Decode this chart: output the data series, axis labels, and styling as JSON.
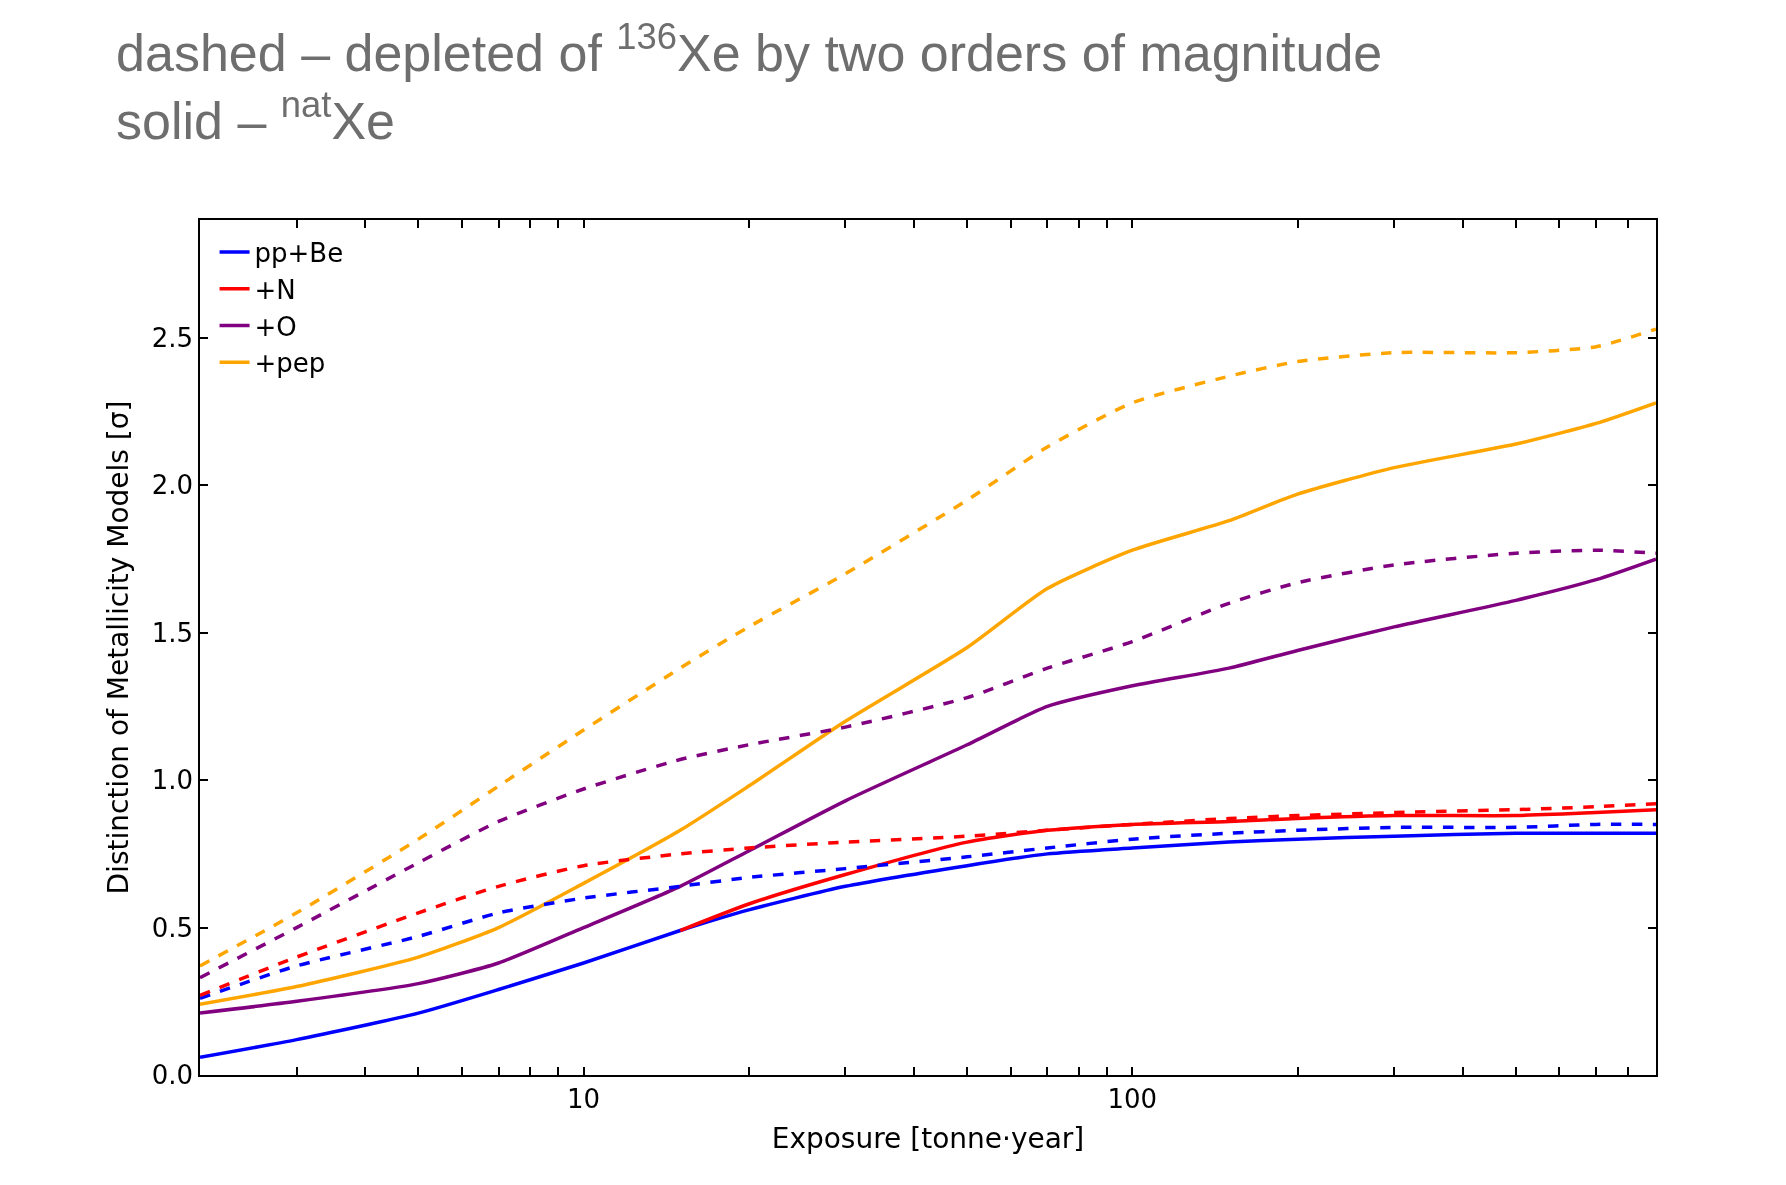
{
  "chart_data": {
    "type": "line",
    "title": "dashed – depleted of $^{136}$Xe by two orders of magnitude",
    "subtitle": "solid – $^{nat}$Xe",
    "xlabel": "Exposure [tonne·year]",
    "ylabel": "Distinction of Metallicity Models [σ]",
    "x": [
      2,
      3,
      5,
      7,
      10,
      15,
      20,
      30,
      50,
      70,
      100,
      150,
      200,
      300,
      500,
      700,
      900
    ],
    "log": "x",
    "xlim": [
      2,
      900
    ],
    "xticks": [
      {
        "value": 2,
        "label": null
      },
      {
        "value": 3,
        "label": null
      },
      {
        "value": 4,
        "label": null
      },
      {
        "value": 5,
        "label": null
      },
      {
        "value": 6,
        "label": null
      },
      {
        "value": 7,
        "label": null
      },
      {
        "value": 8,
        "label": null
      },
      {
        "value": 9,
        "label": null
      },
      10,
      {
        "value": 20,
        "label": null
      },
      {
        "value": 30,
        "label": null
      },
      {
        "value": 40,
        "label": null
      },
      {
        "value": 50,
        "label": null
      },
      {
        "value": 60,
        "label": null
      },
      {
        "value": 70,
        "label": null
      },
      {
        "value": 80,
        "label": null
      },
      {
        "value": 90,
        "label": null
      },
      100,
      {
        "value": 200,
        "label": null
      },
      {
        "value": 300,
        "label": null
      },
      {
        "value": 400,
        "label": null
      },
      {
        "value": 500,
        "label": null
      },
      {
        "value": 600,
        "label": null
      },
      {
        "value": 700,
        "label": null
      },
      {
        "value": 800,
        "label": null
      },
      {
        "value": 900,
        "label": null
      }
    ],
    "ylim": [
      0,
      2.9
    ],
    "yticks": [
      {
        "value": 0,
        "label": "0.0"
      },
      0.5,
      {
        "value": 1,
        "label": "1.0"
      },
      1.5,
      {
        "value": 2,
        "label": "2.0"
      },
      2.5
    ],
    "grid": false,
    "legend": "top left",
    "series": [
      {
        "name": "pp+Be",
        "color": "#0000ff",
        "line_style": "solid",
        "values": [
          0.06,
          0.12,
          0.21,
          0.29,
          0.38,
          0.49,
          0.56,
          0.64,
          0.71,
          0.75,
          0.77,
          0.79,
          0.8,
          0.81,
          0.82,
          0.82,
          0.82
        ]
      },
      {
        "name": "+N",
        "color": "#ff0000",
        "line_style": "solid",
        "values": [
          null,
          null,
          null,
          null,
          null,
          0.49,
          0.58,
          0.68,
          0.79,
          0.83,
          0.85,
          0.86,
          0.87,
          0.88,
          0.88,
          0.89,
          0.9
        ]
      },
      {
        "name": "+O",
        "color": "#800080",
        "line_style": "solid",
        "values": [
          0.21,
          0.25,
          0.31,
          0.38,
          0.5,
          0.64,
          0.76,
          0.93,
          1.12,
          1.25,
          1.32,
          1.38,
          1.44,
          1.52,
          1.61,
          1.68,
          1.75
        ]
      },
      {
        "name": "+pep",
        "color": "#ffa500",
        "line_style": "solid",
        "values": [
          0.24,
          0.3,
          0.4,
          0.5,
          0.65,
          0.83,
          0.98,
          1.2,
          1.45,
          1.65,
          1.78,
          1.88,
          1.97,
          2.06,
          2.14,
          2.21,
          2.28
        ]
      },
      {
        "color": "#0000ff",
        "line_style": "dashed",
        "values": [
          0.26,
          0.37,
          0.47,
          0.55,
          0.6,
          0.64,
          0.67,
          0.7,
          0.74,
          0.77,
          0.8,
          0.82,
          0.83,
          0.84,
          0.84,
          0.85,
          0.85
        ]
      },
      {
        "color": "#ff0000",
        "line_style": "dashed",
        "values": [
          0.27,
          0.4,
          0.55,
          0.64,
          0.71,
          0.75,
          0.77,
          0.79,
          0.81,
          0.83,
          0.85,
          0.87,
          0.88,
          0.89,
          0.9,
          0.91,
          0.92
        ]
      },
      {
        "color": "#800080",
        "line_style": "dashed",
        "values": [
          0.33,
          0.5,
          0.72,
          0.86,
          0.97,
          1.07,
          1.12,
          1.18,
          1.28,
          1.38,
          1.47,
          1.6,
          1.67,
          1.73,
          1.77,
          1.78,
          1.77
        ]
      },
      {
        "color": "#ffa500",
        "line_style": "dashed",
        "values": [
          0.37,
          0.55,
          0.8,
          0.98,
          1.17,
          1.38,
          1.52,
          1.7,
          1.95,
          2.13,
          2.28,
          2.37,
          2.42,
          2.45,
          2.45,
          2.47,
          2.53
        ]
      }
    ]
  }
}
